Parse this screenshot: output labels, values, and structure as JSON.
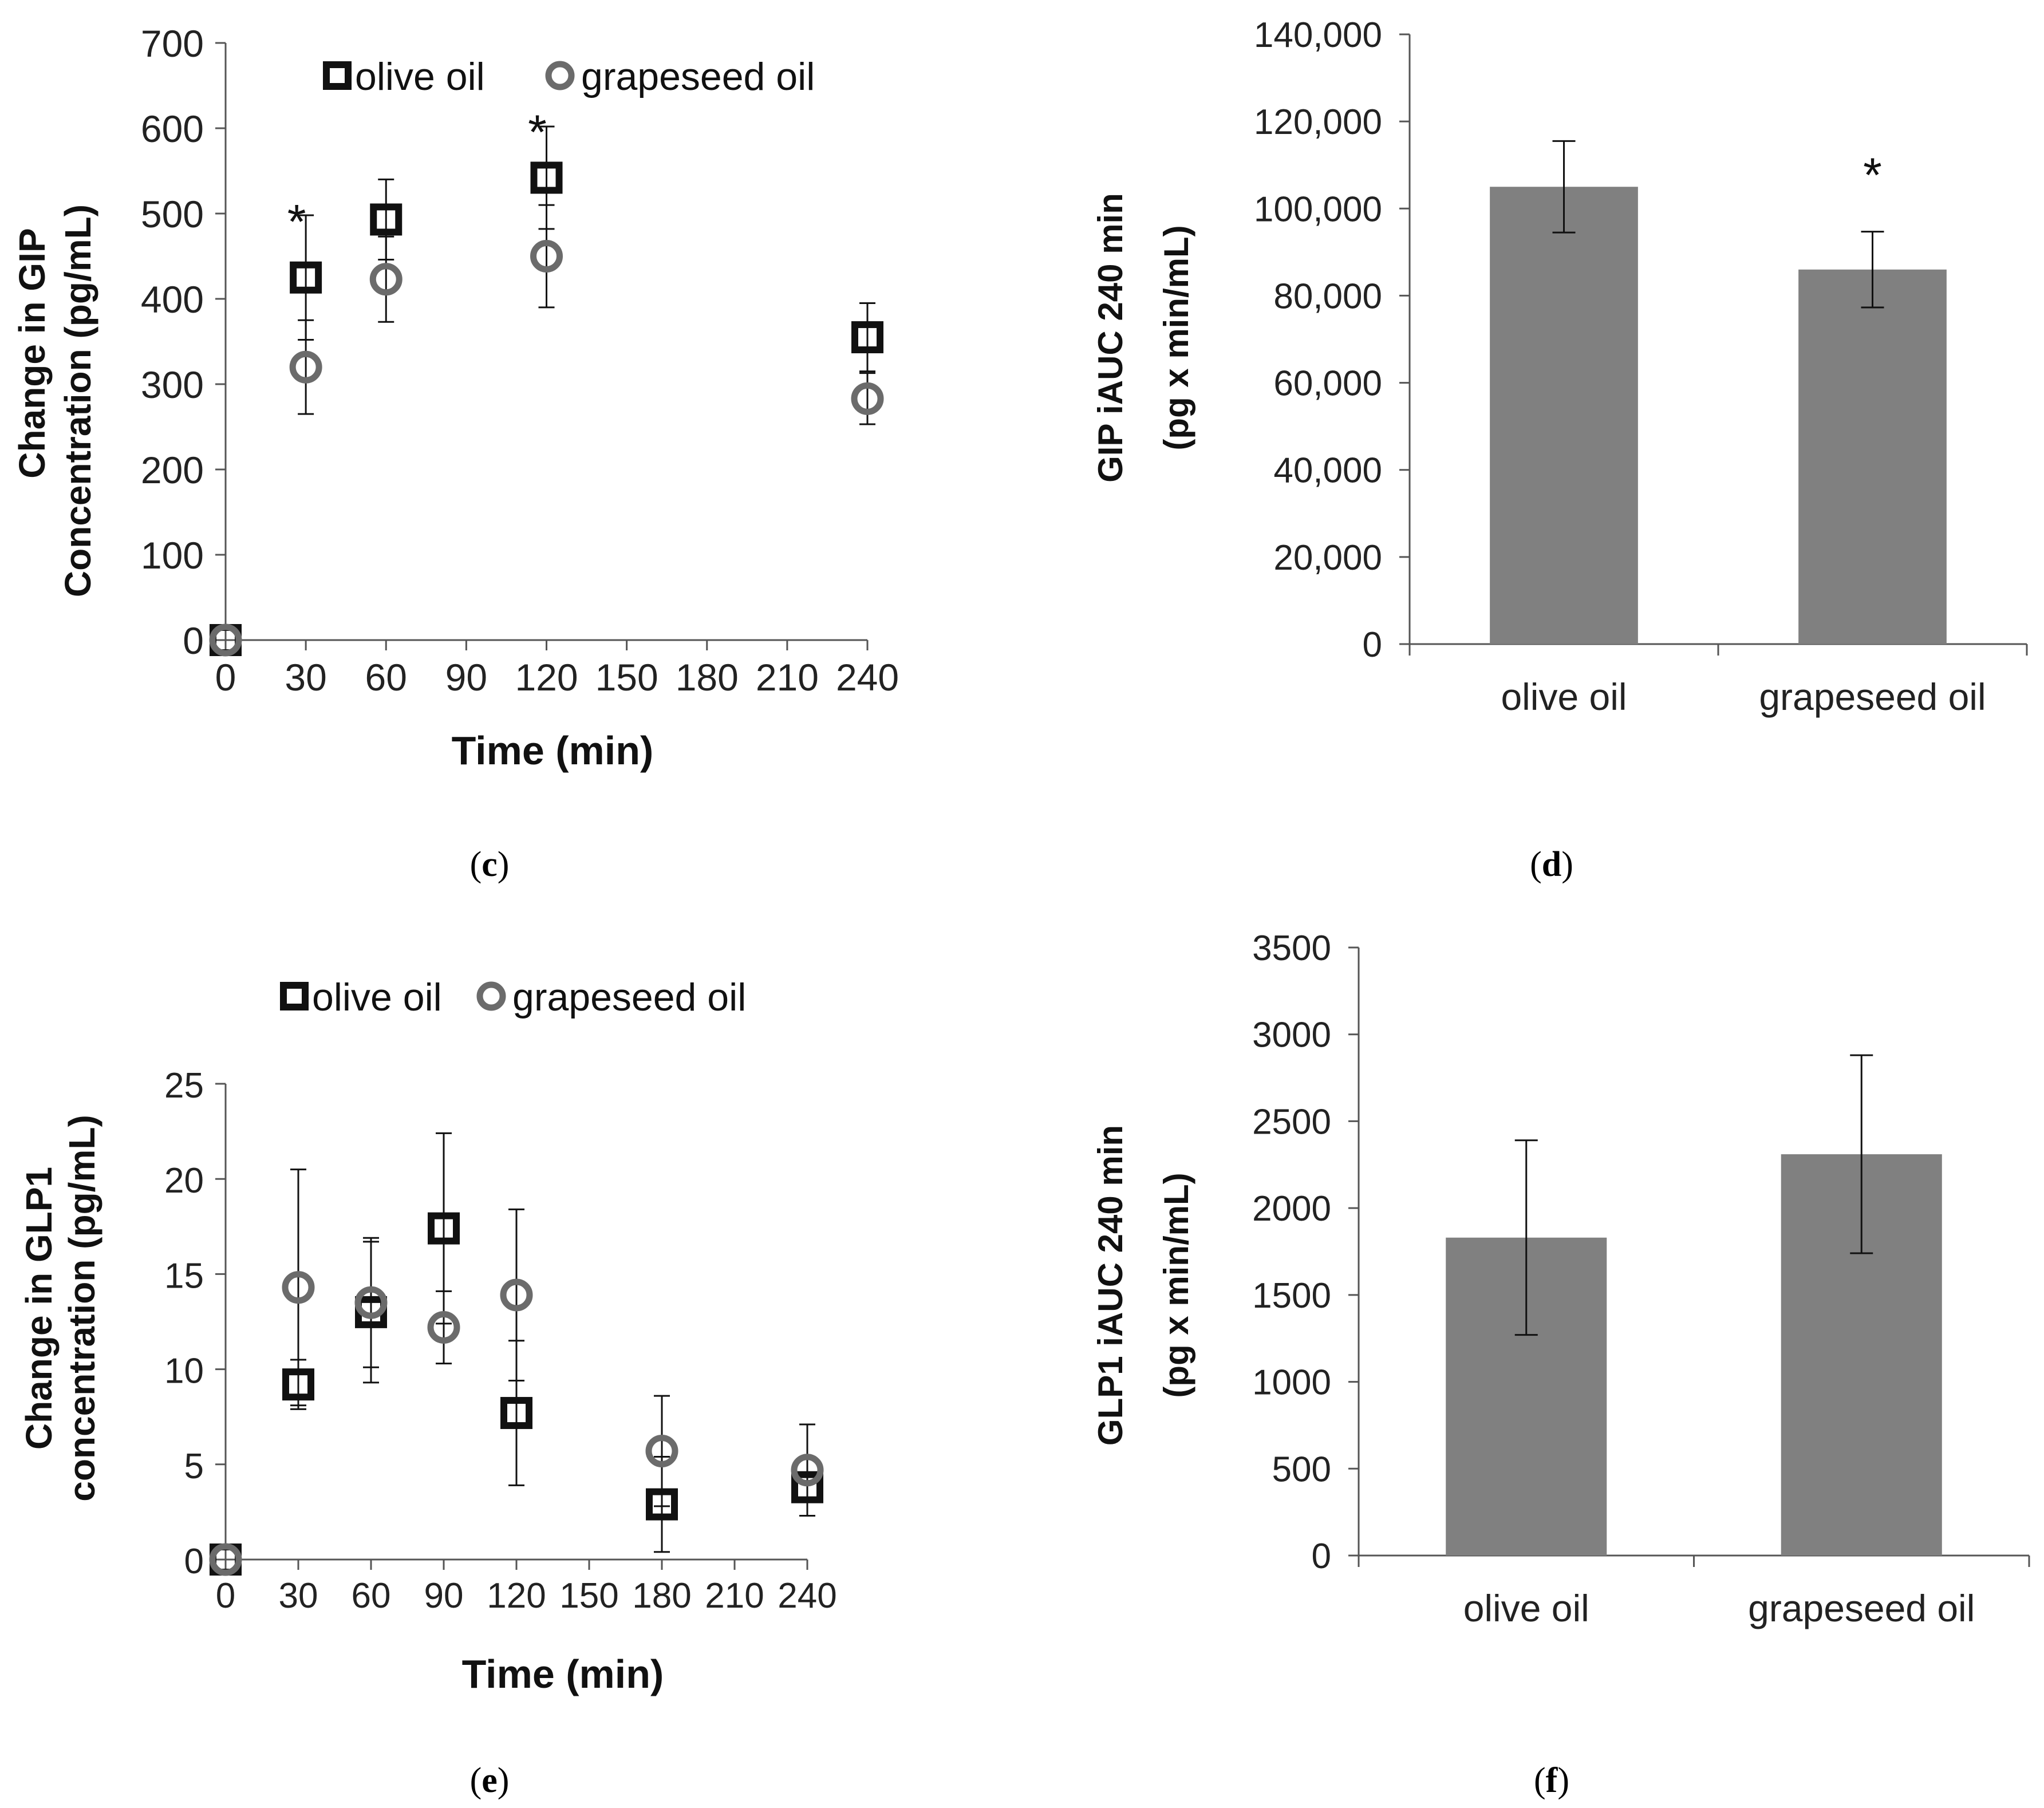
{
  "colors": {
    "olive": "#111111",
    "grape": "#6b6b6b",
    "bar": "#808080",
    "axis": "#555555",
    "errbar": "#111111"
  },
  "chart_data": [
    {
      "panel": "c",
      "type": "scatter",
      "ylabel_line1": "Change in GIP",
      "ylabel_line2": "Concentration (pg/mL)",
      "xlabel": "Time (min)",
      "xlim": [
        0,
        240
      ],
      "ylim": [
        0,
        700
      ],
      "xticks": [
        "0",
        "30",
        "60",
        "90",
        "120",
        "150",
        "180",
        "210",
        "240"
      ],
      "yticks": [
        "0",
        "100",
        "200",
        "300",
        "400",
        "500",
        "600",
        "700"
      ],
      "legend": [
        "olive oil",
        "grapeseed oil"
      ],
      "series": [
        {
          "name": "olive oil",
          "marker": "square",
          "points": [
            {
              "x": 0,
              "y": 0,
              "err": 0
            },
            {
              "x": 30,
              "y": 425,
              "err": 73
            },
            {
              "x": 60,
              "y": 493,
              "err": 47
            },
            {
              "x": 120,
              "y": 542,
              "err": 60
            },
            {
              "x": 240,
              "y": 355,
              "err": 40
            }
          ]
        },
        {
          "name": "grapeseed oil",
          "marker": "circle",
          "points": [
            {
              "x": 0,
              "y": 0,
              "err": 0
            },
            {
              "x": 30,
              "y": 320,
              "err": 55
            },
            {
              "x": 60,
              "y": 423,
              "err": 50
            },
            {
              "x": 120,
              "y": 450,
              "err": 60
            },
            {
              "x": 240,
              "y": 283,
              "err": 30
            }
          ]
        }
      ],
      "annotations": [
        {
          "text": "*",
          "x": 30,
          "y": 498
        },
        {
          "text": "*",
          "x": 120,
          "y": 603
        }
      ],
      "caption": "c"
    },
    {
      "panel": "d",
      "type": "bar",
      "ylabel_line1": "GIP iAUC 240 min",
      "ylabel_line2": "(pg x min/mL)",
      "categories": [
        "olive oil",
        "grapeseed oil"
      ],
      "values": [
        105000,
        86000
      ],
      "errors": [
        10500,
        8700
      ],
      "ylim": [
        0,
        140000
      ],
      "yticks": [
        "0",
        "20,000",
        "40,000",
        "60,000",
        "80,000",
        "100,000",
        "120,000",
        "140,000"
      ],
      "annotations": [
        {
          "text": "*",
          "category": "grapeseed oil"
        }
      ],
      "caption": "d"
    },
    {
      "panel": "e",
      "type": "scatter",
      "ylabel_line1": "Change in GLP1",
      "ylabel_line2": "concentration (pg/mL)",
      "xlabel": "Time (min)",
      "xlim": [
        0,
        240
      ],
      "ylim": [
        0,
        25
      ],
      "xticks": [
        "0",
        "30",
        "60",
        "90",
        "120",
        "150",
        "180",
        "210",
        "240"
      ],
      "yticks": [
        "0",
        "5",
        "10",
        "15",
        "20",
        "25"
      ],
      "legend": [
        "olive oil",
        "grapeseed oil"
      ],
      "series": [
        {
          "name": "olive oil",
          "marker": "square",
          "points": [
            {
              "x": 0,
              "y": 0,
              "err": 0
            },
            {
              "x": 30,
              "y": 9.2,
              "err": 1.3
            },
            {
              "x": 60,
              "y": 13.0,
              "err": 3.7
            },
            {
              "x": 90,
              "y": 17.4,
              "err": 5.0
            },
            {
              "x": 120,
              "y": 7.7,
              "err": 3.8
            },
            {
              "x": 180,
              "y": 2.9,
              "err": 2.5
            },
            {
              "x": 240,
              "y": 3.8,
              "err": 1.5
            }
          ]
        },
        {
          "name": "grapeseed oil",
          "marker": "circle",
          "points": [
            {
              "x": 0,
              "y": 0,
              "err": 0
            },
            {
              "x": 30,
              "y": 14.3,
              "err": 6.2
            },
            {
              "x": 60,
              "y": 13.5,
              "err": 3.4
            },
            {
              "x": 90,
              "y": 12.2,
              "err": 1.9
            },
            {
              "x": 120,
              "y": 13.9,
              "err": 4.5
            },
            {
              "x": 180,
              "y": 5.7,
              "err": 2.9
            },
            {
              "x": 240,
              "y": 4.7,
              "err": 2.4
            }
          ]
        }
      ],
      "caption": "e"
    },
    {
      "panel": "f",
      "type": "bar",
      "ylabel_line1": "GLP1 iAUC 240 min",
      "ylabel_line2": "(pg x min/mL)",
      "categories": [
        "olive oil",
        "grapeseed oil"
      ],
      "values": [
        1830,
        2310
      ],
      "errors": [
        560,
        570
      ],
      "ylim": [
        0,
        3500
      ],
      "yticks": [
        "0",
        "500",
        "1000",
        "1500",
        "2000",
        "2500",
        "3000",
        "3500"
      ],
      "caption": "f"
    }
  ]
}
